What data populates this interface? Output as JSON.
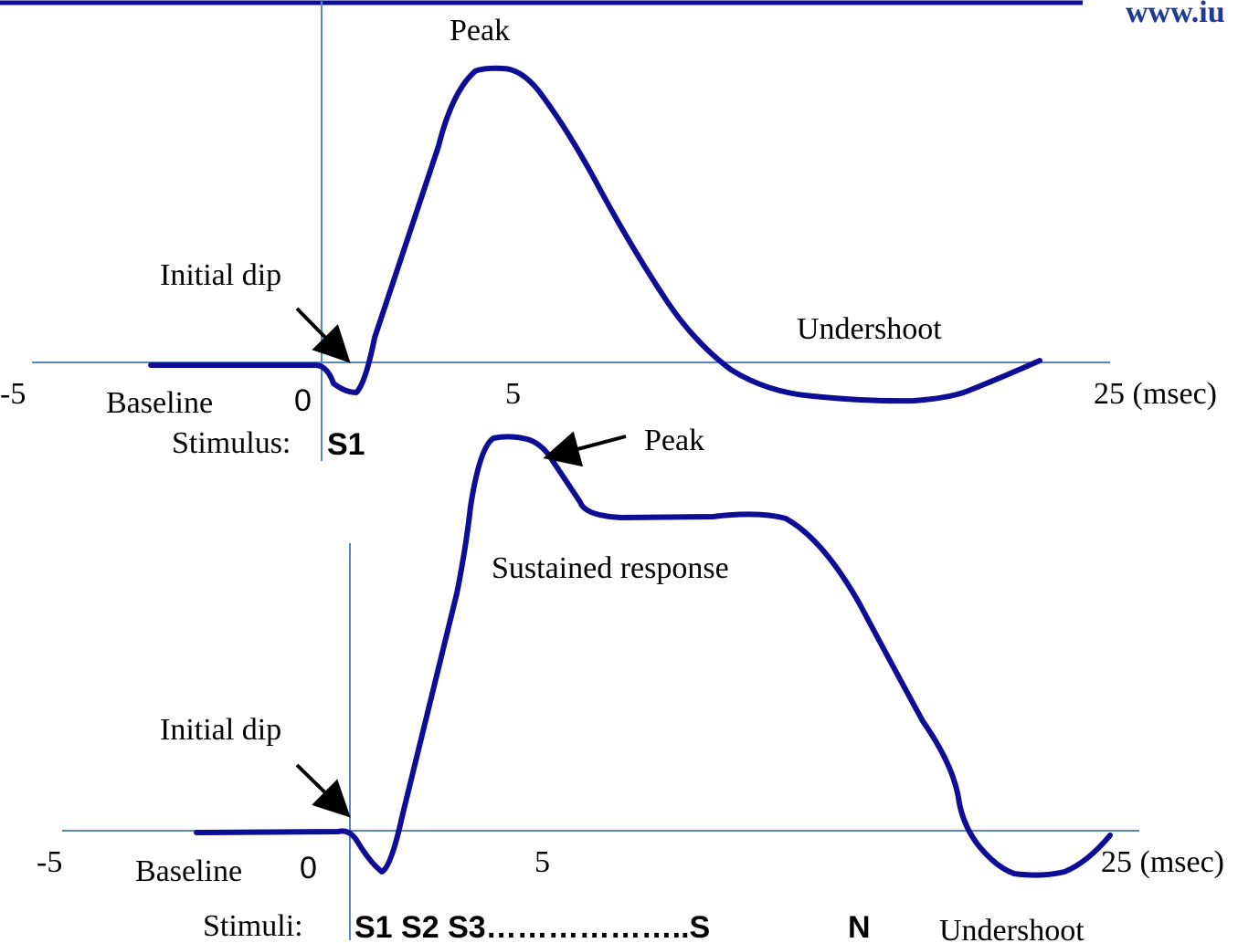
{
  "header": {
    "url": "www.iu"
  },
  "top": {
    "peak": "Peak",
    "initial_dip": "Initial dip",
    "undershoot": "Undershoot",
    "baseline": "Baseline",
    "ticks": [
      "-5",
      "0",
      "5",
      "25 (msec)"
    ],
    "stimulus_label": "Stimulus:",
    "stimuli": "S1"
  },
  "bottom": {
    "peak": "Peak",
    "sustained": "Sustained response",
    "initial_dip": "Initial dip",
    "baseline": "Baseline",
    "ticks": [
      "-5",
      "0",
      "5",
      "25 (msec)"
    ],
    "stimulus_label": "Stimuli:",
    "stimuli": "S1 S2 S3………………..S",
    "stimuli_sub": "N",
    "undershoot": "Undershoot"
  }
}
